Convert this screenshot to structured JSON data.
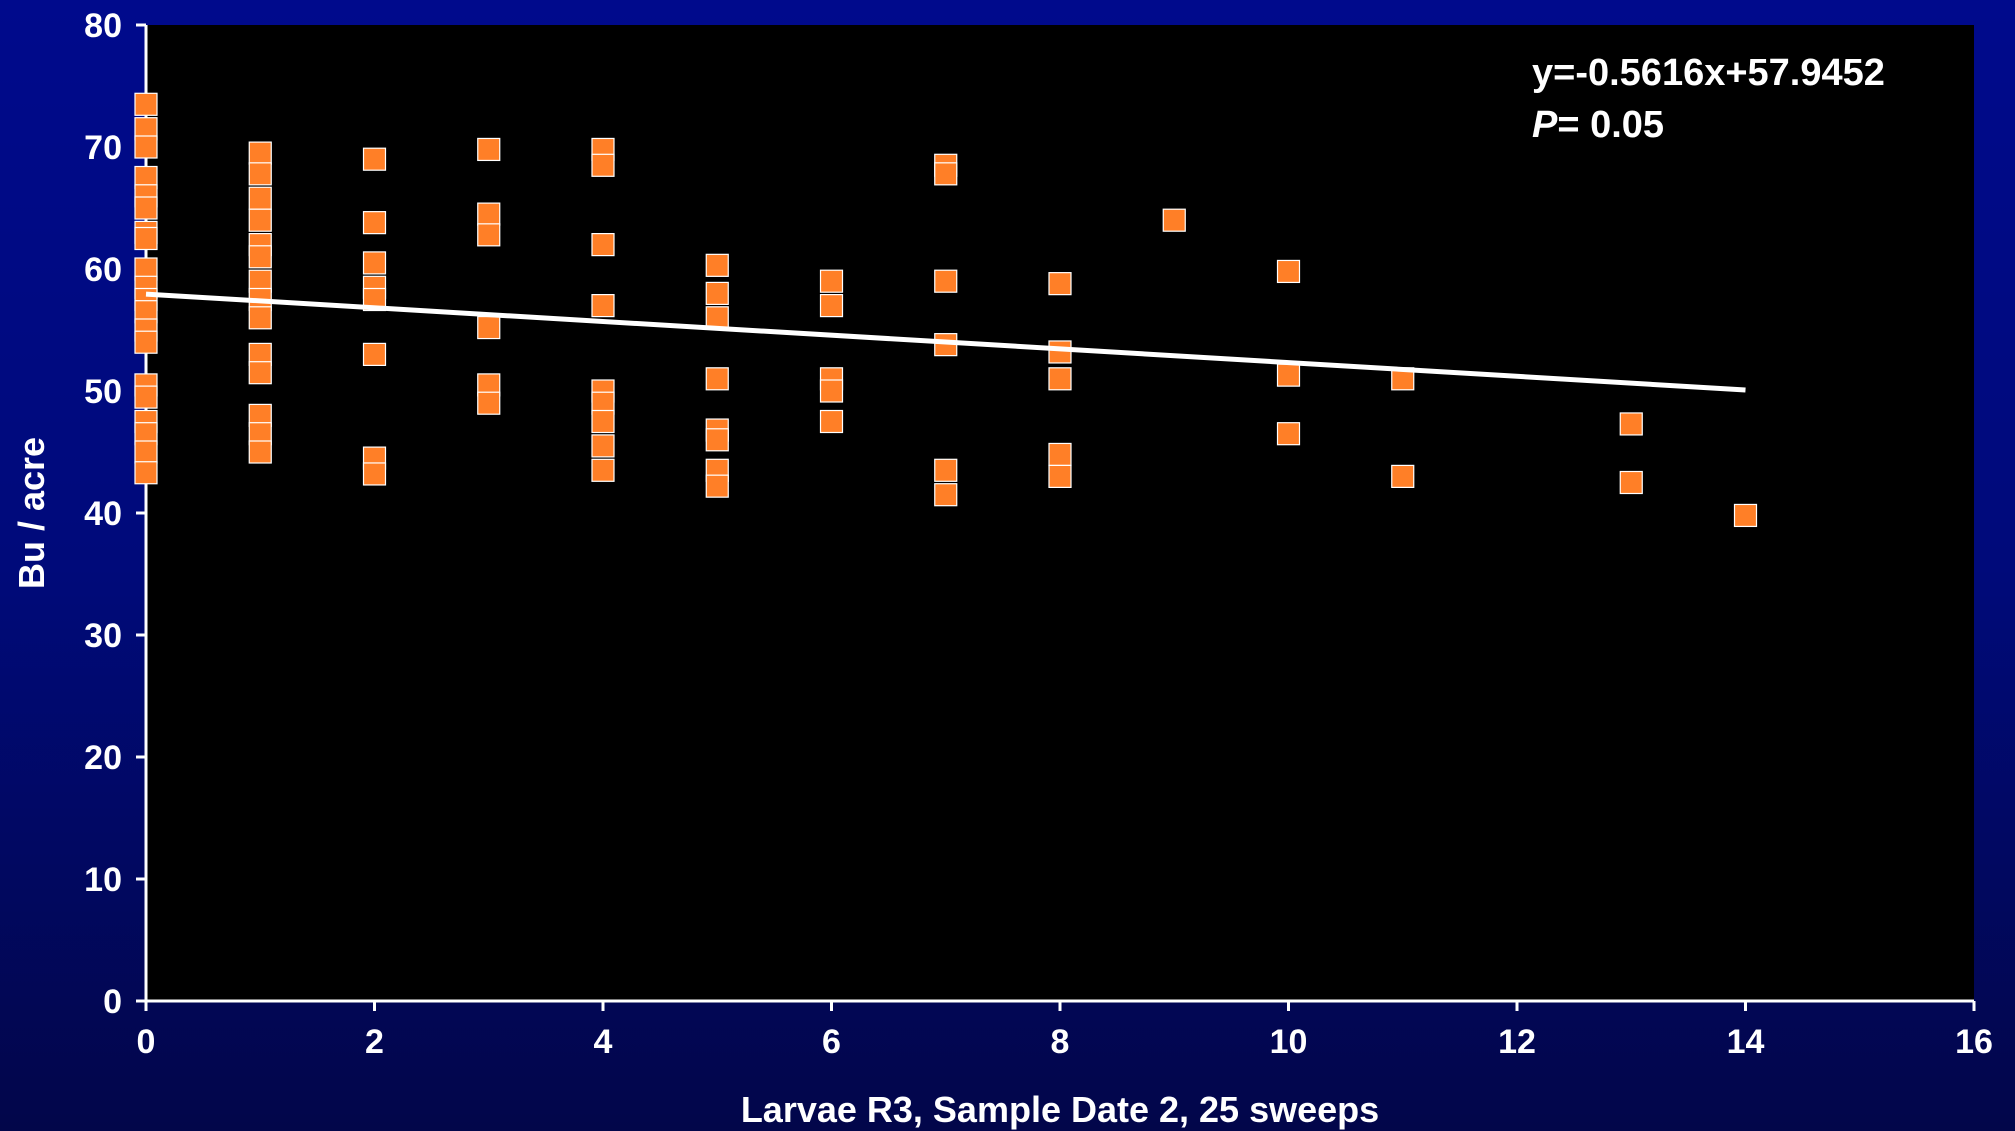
{
  "chart_data": {
    "type": "scatter",
    "title": "",
    "xlabel": "Larvae R3, Sample Date 2, 25 sweeps",
    "ylabel": "Bu / acre",
    "xlim": [
      0,
      16
    ],
    "ylim": [
      0,
      80
    ],
    "xticks": [
      "0",
      "2",
      "4",
      "6",
      "8",
      "10",
      "12",
      "14",
      "16"
    ],
    "yticks": [
      "0",
      "10",
      "20",
      "30",
      "40",
      "50",
      "60",
      "70",
      "80"
    ],
    "grid": false,
    "annotations": {
      "equation": "y=-0.5616x+57.9452",
      "p_label": "P",
      "p_value": "= 0.05"
    },
    "trendline": {
      "slope": -0.5616,
      "intercept": 57.9452,
      "x_range": [
        0,
        14
      ]
    },
    "colors": {
      "plot_bg": "#000000",
      "marker": "#ff7f27",
      "marker_edge": "#ffffff",
      "trendline": "#ffffff",
      "text": "#ffffff"
    },
    "series": [
      {
        "points": [
          [
            0,
            73.5
          ],
          [
            0,
            71.5
          ],
          [
            0,
            70
          ],
          [
            0,
            67.5
          ],
          [
            0,
            66
          ],
          [
            0,
            65
          ],
          [
            0,
            63
          ],
          [
            0,
            62.5
          ],
          [
            0,
            60
          ],
          [
            0,
            58.5
          ],
          [
            0,
            57.5
          ],
          [
            0,
            56.5
          ],
          [
            0,
            55
          ],
          [
            0,
            54
          ],
          [
            0,
            50.5
          ],
          [
            0,
            49.5
          ],
          [
            0,
            47.5
          ],
          [
            0,
            46.5
          ],
          [
            0,
            45
          ],
          [
            0,
            43.3
          ],
          [
            1,
            69.5
          ],
          [
            1,
            67.8
          ],
          [
            1,
            65.8
          ],
          [
            1,
            64
          ],
          [
            1,
            62
          ],
          [
            1,
            61
          ],
          [
            1,
            59
          ],
          [
            1,
            57.5
          ],
          [
            1,
            56
          ],
          [
            1,
            53
          ],
          [
            1,
            51.5
          ],
          [
            1,
            48
          ],
          [
            1,
            46.5
          ],
          [
            1,
            45
          ],
          [
            2,
            69
          ],
          [
            2,
            63.8
          ],
          [
            2,
            60.5
          ],
          [
            2,
            58.5
          ],
          [
            2,
            57.5
          ],
          [
            2,
            53
          ],
          [
            2,
            44.5
          ],
          [
            2,
            43.2
          ],
          [
            3,
            69.8
          ],
          [
            3,
            64.5
          ],
          [
            3,
            62.8
          ],
          [
            3,
            55.2
          ],
          [
            3,
            50.5
          ],
          [
            3,
            49
          ],
          [
            4,
            69.8
          ],
          [
            4,
            68.5
          ],
          [
            4,
            62
          ],
          [
            4,
            57
          ],
          [
            4,
            50
          ],
          [
            4,
            49
          ],
          [
            4,
            47.5
          ],
          [
            4,
            45.5
          ],
          [
            4,
            43.5
          ],
          [
            5,
            60.3
          ],
          [
            5,
            58
          ],
          [
            5,
            56
          ],
          [
            5,
            51
          ],
          [
            5,
            46.8
          ],
          [
            5,
            46
          ],
          [
            5,
            43.5
          ],
          [
            5,
            42.2
          ],
          [
            6,
            59
          ],
          [
            6,
            57
          ],
          [
            6,
            51
          ],
          [
            6,
            50
          ],
          [
            6,
            47.5
          ],
          [
            7,
            68.5
          ],
          [
            7,
            67.8
          ],
          [
            7,
            59
          ],
          [
            7,
            53.8
          ],
          [
            7,
            43.5
          ],
          [
            7,
            41.5
          ],
          [
            8,
            58.8
          ],
          [
            8,
            53.2
          ],
          [
            8,
            51
          ],
          [
            8,
            44.8
          ],
          [
            8,
            43
          ],
          [
            9,
            64
          ],
          [
            10,
            59.8
          ],
          [
            10,
            51.3
          ],
          [
            10,
            46.5
          ],
          [
            11,
            51
          ],
          [
            11,
            43
          ],
          [
            13,
            47.3
          ],
          [
            13,
            42.5
          ],
          [
            14,
            39.8
          ]
        ]
      }
    ]
  }
}
